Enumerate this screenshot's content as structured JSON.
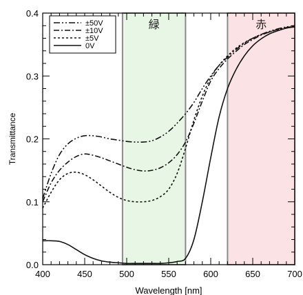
{
  "chart_data": {
    "type": "line",
    "title": "",
    "xlabel": "Wavelength [nm]",
    "ylabel": "Transmittance",
    "xlim": [
      400,
      700
    ],
    "ylim": [
      0.0,
      0.4
    ],
    "xticks": [
      400,
      450,
      500,
      550,
      600,
      650,
      700
    ],
    "yticks": [
      0.0,
      0.1,
      0.2,
      0.3,
      0.4
    ],
    "ytick_labels": [
      "0.0",
      "0.1",
      "0.2",
      "0.3",
      "0.4"
    ],
    "x_minor_step": 10,
    "y_minor_step": 0.02,
    "grid": false,
    "legend_position": "top-left",
    "bands": [
      {
        "label": "緑",
        "x_range": [
          495,
          570
        ],
        "color": "#e8f6e6"
      },
      {
        "label": "赤",
        "x_range": [
          620,
          700
        ],
        "color": "#fbe3e5"
      }
    ],
    "series": [
      {
        "name": "±50V",
        "style": "dash-dot-dot",
        "x": [
          400,
          410,
          420,
          430,
          440,
          450,
          460,
          470,
          480,
          490,
          500,
          510,
          520,
          530,
          540,
          550,
          560,
          570,
          580,
          590,
          600,
          610,
          620,
          630,
          640,
          650,
          660,
          670,
          680,
          690,
          700
        ],
        "y": [
          0.105,
          0.145,
          0.175,
          0.192,
          0.201,
          0.205,
          0.205,
          0.203,
          0.2,
          0.198,
          0.196,
          0.195,
          0.195,
          0.197,
          0.203,
          0.212,
          0.225,
          0.24,
          0.258,
          0.28,
          0.3,
          0.317,
          0.33,
          0.342,
          0.352,
          0.36,
          0.366,
          0.371,
          0.375,
          0.378,
          0.38
        ]
      },
      {
        "name": "±10V",
        "style": "dash-dot",
        "x": [
          400,
          410,
          420,
          430,
          440,
          450,
          460,
          470,
          480,
          490,
          500,
          510,
          520,
          530,
          540,
          550,
          560,
          570,
          580,
          590,
          600,
          610,
          620,
          630,
          640,
          650,
          660,
          670,
          680,
          690,
          700
        ],
        "y": [
          0.1,
          0.13,
          0.15,
          0.163,
          0.172,
          0.176,
          0.174,
          0.17,
          0.165,
          0.16,
          0.155,
          0.151,
          0.149,
          0.15,
          0.154,
          0.162,
          0.175,
          0.195,
          0.225,
          0.26,
          0.292,
          0.312,
          0.327,
          0.339,
          0.35,
          0.358,
          0.365,
          0.37,
          0.374,
          0.377,
          0.379
        ]
      },
      {
        "name": "±5V",
        "style": "dotted",
        "x": [
          400,
          410,
          420,
          430,
          440,
          450,
          460,
          470,
          480,
          490,
          500,
          510,
          520,
          530,
          540,
          550,
          560,
          570,
          580,
          590,
          600,
          610,
          620,
          630,
          640,
          650,
          660,
          670,
          680,
          690,
          700
        ],
        "y": [
          0.09,
          0.115,
          0.135,
          0.145,
          0.147,
          0.143,
          0.135,
          0.125,
          0.115,
          0.107,
          0.102,
          0.1,
          0.1,
          0.102,
          0.108,
          0.12,
          0.145,
          0.185,
          0.23,
          0.268,
          0.297,
          0.317,
          0.332,
          0.344,
          0.353,
          0.36,
          0.366,
          0.37,
          0.374,
          0.377,
          0.379
        ]
      },
      {
        "name": "0V",
        "style": "solid",
        "x": [
          400,
          410,
          420,
          430,
          440,
          450,
          460,
          470,
          480,
          490,
          500,
          510,
          520,
          530,
          540,
          550,
          560,
          570,
          580,
          590,
          600,
          610,
          620,
          630,
          640,
          650,
          660,
          670,
          680,
          690,
          700
        ],
        "y": [
          0.038,
          0.038,
          0.037,
          0.032,
          0.024,
          0.016,
          0.01,
          0.006,
          0.004,
          0.003,
          0.002,
          0.002,
          0.002,
          0.002,
          0.002,
          0.003,
          0.005,
          0.01,
          0.04,
          0.1,
          0.17,
          0.235,
          0.28,
          0.31,
          0.332,
          0.348,
          0.359,
          0.367,
          0.372,
          0.376,
          0.378
        ]
      }
    ]
  }
}
